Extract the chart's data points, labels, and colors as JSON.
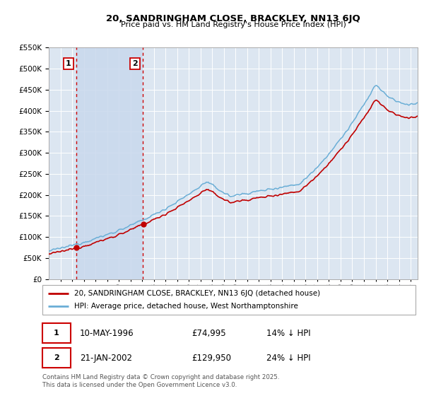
{
  "title": "20, SANDRINGHAM CLOSE, BRACKLEY, NN13 6JQ",
  "subtitle": "Price paid vs. HM Land Registry's House Price Index (HPI)",
  "legend_line1": "20, SANDRINGHAM CLOSE, BRACKLEY, NN13 6JQ (detached house)",
  "legend_line2": "HPI: Average price, detached house, West Northamptonshire",
  "transaction1_date": "10-MAY-1996",
  "transaction1_price": "£74,995",
  "transaction1_hpi": "14% ↓ HPI",
  "transaction2_date": "21-JAN-2002",
  "transaction2_price": "£129,950",
  "transaction2_hpi": "24% ↓ HPI",
  "footer": "Contains HM Land Registry data © Crown copyright and database right 2025.\nThis data is licensed under the Open Government Licence v3.0.",
  "sale1_year": 1996.36,
  "sale1_value": 74995,
  "sale2_year": 2002.05,
  "sale2_value": 129950,
  "hpi_color": "#6aaed6",
  "price_color": "#c00000",
  "vline_color": "#cc0000",
  "background_chart": "#dce6f1",
  "span_color": "#c8d8ed",
  "grid_color": "#ffffff",
  "ylim": [
    0,
    550000
  ],
  "xlim_start": 1994.0,
  "xlim_end": 2025.6
}
